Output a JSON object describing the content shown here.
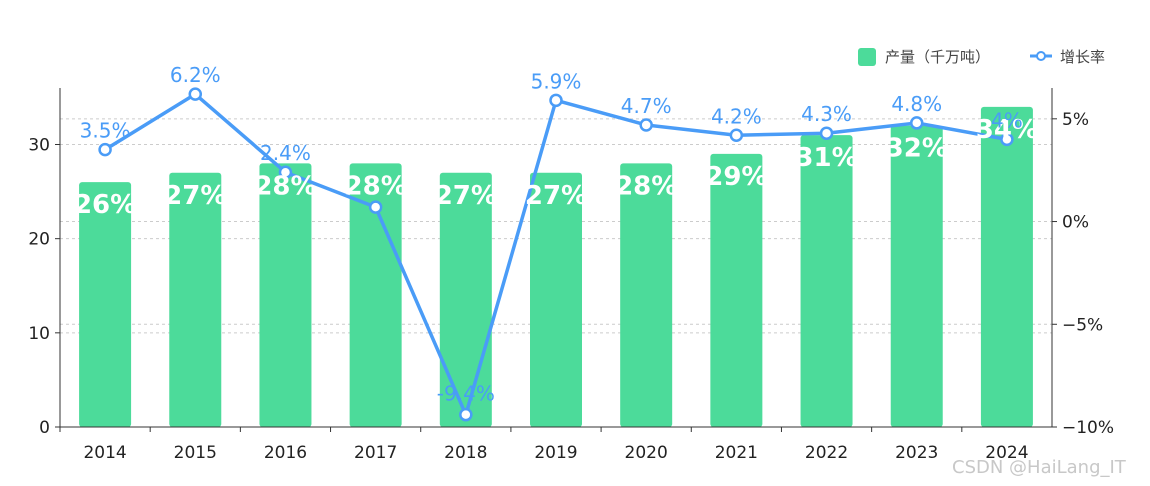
{
  "chart_data": {
    "type": "bar",
    "categories": [
      "2014",
      "2015",
      "2016",
      "2017",
      "2018",
      "2019",
      "2020",
      "2021",
      "2022",
      "2023",
      "2024"
    ],
    "series": [
      {
        "name": "产量（千万吨）",
        "type": "bar",
        "axis": "left",
        "values": [
          26,
          27,
          28,
          28,
          27,
          27,
          28,
          29,
          31,
          32,
          34
        ],
        "labels": [
          "26%",
          "27%",
          "28%",
          "28%",
          "27%",
          "27%",
          "28%",
          "29%",
          "31%",
          "32%",
          "34%"
        ],
        "color": "#4cdb9a"
      },
      {
        "name": "增长率",
        "type": "line",
        "axis": "right",
        "values": [
          3.5,
          6.2,
          2.4,
          0.7,
          -9.4,
          5.9,
          4.7,
          4.2,
          4.3,
          4.8,
          4.0
        ],
        "labels": [
          "3.5%",
          "6.2%",
          "2.4%",
          "",
          "-9.4%",
          "5.9%",
          "4.7%",
          "4.2%",
          "4.3%",
          "4.8%",
          "4%"
        ],
        "color": "#4a9cf7"
      }
    ],
    "y_left": {
      "ylim": [
        0,
        36
      ],
      "ticks": [
        "0",
        "10",
        "20",
        "30"
      ],
      "tick_values": [
        0,
        10,
        20,
        30
      ]
    },
    "y_right": {
      "ylim": [
        -10,
        6.5
      ],
      "ticks": [
        "−10%",
        "−5%",
        "0%",
        "5%"
      ],
      "tick_values": [
        -10,
        -5,
        0,
        5
      ]
    },
    "grid": true,
    "legend_position": "top-right"
  },
  "watermark": "CSDN @HaiLang_IT"
}
